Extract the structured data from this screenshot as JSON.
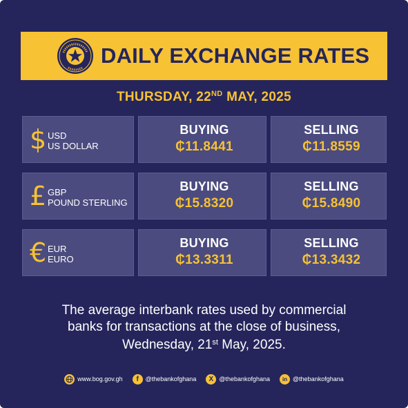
{
  "header": {
    "title": "DAILY EXCHANGE RATES",
    "seal_text_top": "BANK OF GHANA",
    "seal_text_bottom": "EST. 1957"
  },
  "date": {
    "weekday": "THURSDAY, 22",
    "suffix": "ND",
    "rest": " MAY, 2025"
  },
  "rates": [
    {
      "symbol": "$",
      "code": "USD",
      "name": "US DOLLAR",
      "buying_label": "BUYING",
      "buying": "₵11.8441",
      "selling_label": "SELLING",
      "selling": "₵11.8559"
    },
    {
      "symbol": "£",
      "code": "GBP",
      "name": "POUND STERLING",
      "buying_label": "BUYING",
      "buying": "₵15.8320",
      "selling_label": "SELLING",
      "selling": "₵15.8490"
    },
    {
      "symbol": "€",
      "code": "EUR",
      "name": "EURO",
      "buying_label": "BUYING",
      "buying": "₵13.3311",
      "selling_label": "SELLING",
      "selling": "₵13.3432"
    }
  ],
  "note": {
    "line1": "The average interbank rates used by commercial",
    "line2": "banks for transactions at the close of business,",
    "line3_a": "Wednesday, 21",
    "line3_sup": "st",
    "line3_b": " May, 2025."
  },
  "footer": {
    "website": "www.bog.gov.gh",
    "facebook": "@thebankofghana",
    "x": "@thebankofghana",
    "linkedin": "@thebankofghana",
    "facebook_glyph": "f",
    "x_glyph": "X",
    "linkedin_glyph": "in"
  },
  "colors": {
    "background": "#25255c",
    "accent": "#f7c233",
    "box": "#4b4b7f"
  }
}
